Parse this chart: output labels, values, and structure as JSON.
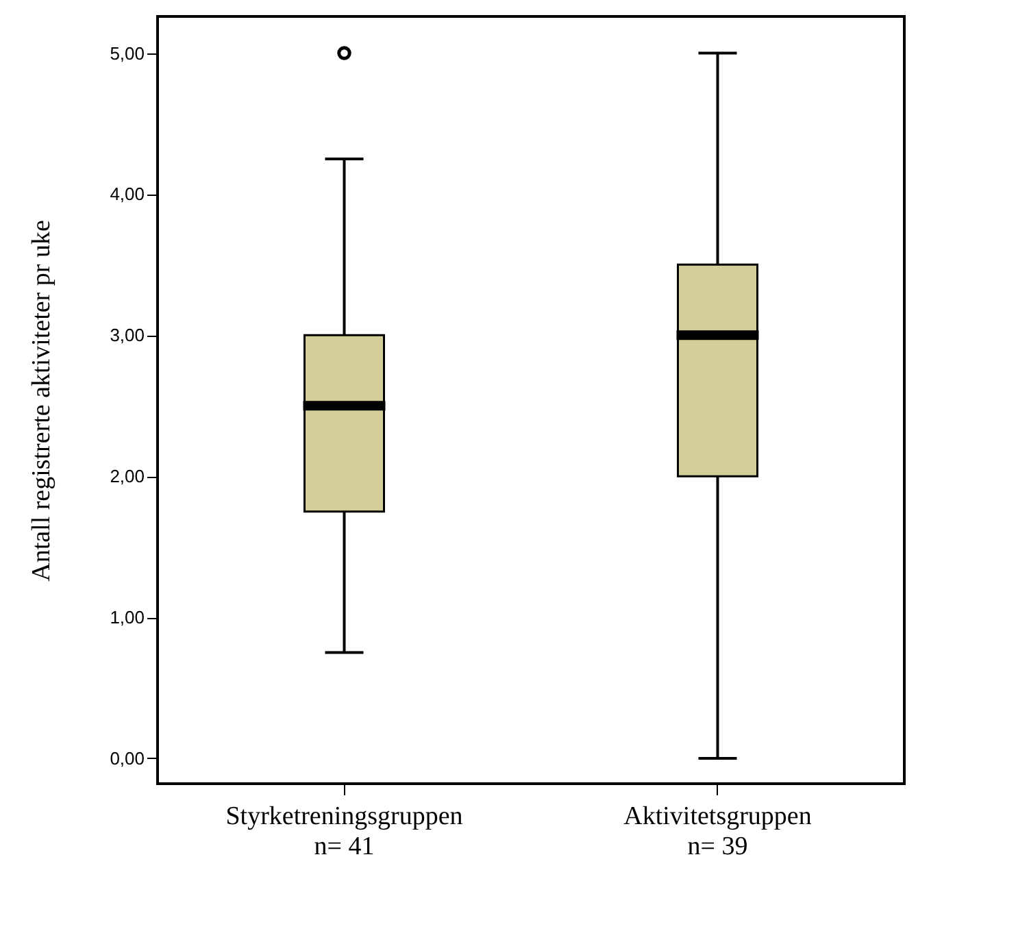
{
  "chart_data": {
    "type": "box",
    "ylabel": "Antall registrerte aktiviteter pr uke",
    "categories": [
      "Styrketreningsgruppen\nn= 41",
      "Aktivitetsgruppen\nn= 39"
    ],
    "color": "#d4cf9a",
    "boxes": [
      {
        "low": 0.75,
        "q1": 1.75,
        "median": 2.5,
        "q3": 3.0,
        "high": 4.25,
        "outliers": [
          5.0
        ]
      },
      {
        "low": 0.0,
        "q1": 2.0,
        "median": 3.0,
        "q3": 3.5,
        "high": 5.0
      }
    ],
    "ylim": [
      -0.18,
      5.26
    ],
    "yticks": [
      {
        "value": 0,
        "label": "0,00"
      },
      {
        "value": 1,
        "label": "1,00"
      },
      {
        "value": 2,
        "label": "2,00"
      },
      {
        "value": 3,
        "label": "3,00"
      },
      {
        "value": 4,
        "label": "4,00"
      },
      {
        "value": 5,
        "label": "5,00"
      }
    ],
    "grid": false
  }
}
